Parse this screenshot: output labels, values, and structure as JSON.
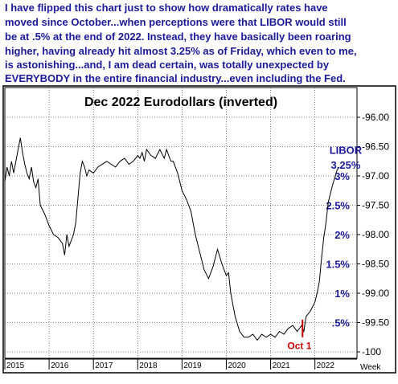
{
  "annotation_text": [
    "I have flipped this chart just to show how dramatically rates have",
    "moved since October...when perceptions were that LIBOR would still",
    "be at .5% at the end of 2022. Instead, they have basically been roaring",
    "higher, having already hit almost 3.25% as of Friday, which even to me,",
    "is astonishing...and, I am dead certain, was totally unexpected by",
    "EVERYBODY in the entire financial industry...even including the Fed."
  ],
  "colors": {
    "annotation_text": "#1a1a9a",
    "price_line": "#000000",
    "oct_marker": "#cc0000",
    "border": "#000000"
  },
  "chart_data": {
    "type": "line",
    "title": "Dec 2022 Eurodollars (inverted)",
    "frequency_label": "Week",
    "y_axis": {
      "inverted": true,
      "ylim": [
        -100,
        -95.9
      ],
      "ticks": [
        "-96.00",
        "-96.50",
        "-97.00",
        "-97.50",
        "-98.00",
        "-98.50",
        "-99.00",
        "-99.50",
        "-100"
      ],
      "tick_values": [
        -96.0,
        -96.5,
        -97.0,
        -97.5,
        -98.0,
        -98.5,
        -99.0,
        -99.5,
        -100.0
      ]
    },
    "rate_labels": [
      {
        "text": "3%",
        "y": -97.0
      },
      {
        "text": "2.5%",
        "y": -97.5
      },
      {
        "text": "2%",
        "y": -98.0
      },
      {
        "text": "1.5%",
        "y": -98.5
      },
      {
        "text": "1%",
        "y": -99.0
      },
      {
        "text": ".5%",
        "y": -99.5
      }
    ],
    "x_axis": {
      "xlim": [
        2015.0,
        2022.95
      ],
      "ticks": [
        "2015",
        "2016",
        "2017",
        "2018",
        "2019",
        "2020",
        "2021",
        "2022"
      ],
      "tick_values": [
        2015,
        2016,
        2017,
        2018,
        2019,
        2020,
        2021,
        2022
      ]
    },
    "annotations": [
      {
        "text": "LIBOR",
        "x": 2022.55,
        "y": -96.62
      },
      {
        "text": "3.25%",
        "x": 2022.55,
        "y": -96.85
      },
      {
        "text": "Oct 1",
        "x": 2021.65,
        "y": -99.9
      }
    ],
    "marker": {
      "label": "Oct 1",
      "x": 2021.72,
      "y_from": -99.45,
      "y_to": -99.75
    },
    "series": [
      {
        "x": [
          2015.0,
          2015.05,
          2015.1,
          2015.15,
          2015.2,
          2015.3,
          2015.35,
          2015.4,
          2015.45,
          2015.5,
          2015.55,
          2015.6,
          2015.65,
          2015.7,
          2015.75,
          2015.8,
          2015.9,
          2016.0,
          2016.1,
          2016.2,
          2016.3,
          2016.35,
          2016.4,
          2016.45,
          2016.5,
          2016.55,
          2016.6,
          2016.7,
          2016.75,
          2016.8,
          2016.85,
          2016.9,
          2017.0,
          2017.1,
          2017.2,
          2017.3,
          2017.4,
          2017.5,
          2017.6,
          2017.7,
          2017.8,
          2017.9,
          2018.0,
          2018.05,
          2018.1,
          2018.15,
          2018.2,
          2018.3,
          2018.4,
          2018.5,
          2018.6,
          2018.65,
          2018.7,
          2018.75,
          2018.8,
          2018.9,
          2019.0,
          2019.1,
          2019.2,
          2019.3,
          2019.4,
          2019.5,
          2019.6,
          2019.7,
          2019.75,
          2019.8,
          2019.9,
          2020.0,
          2020.05,
          2020.1,
          2020.15,
          2020.2,
          2020.3,
          2020.4,
          2020.5,
          2020.6,
          2020.7,
          2020.8,
          2020.9,
          2021.0,
          2021.1,
          2021.2,
          2021.3,
          2021.4,
          2021.5,
          2021.6,
          2021.7,
          2021.75,
          2021.8,
          2021.9,
          2022.0,
          2022.05,
          2022.1,
          2022.15,
          2022.2,
          2022.25,
          2022.3,
          2022.4,
          2022.5,
          2022.55
        ],
        "y": [
          -97.1,
          -96.85,
          -97.0,
          -96.75,
          -96.95,
          -96.55,
          -96.35,
          -96.6,
          -96.8,
          -96.95,
          -97.05,
          -96.85,
          -97.1,
          -97.2,
          -97.05,
          -97.5,
          -97.65,
          -97.85,
          -98.0,
          -98.05,
          -98.15,
          -98.35,
          -98.0,
          -98.2,
          -98.1,
          -98.0,
          -97.8,
          -96.95,
          -96.75,
          -96.85,
          -97.0,
          -96.9,
          -96.95,
          -96.85,
          -96.8,
          -96.75,
          -96.8,
          -96.85,
          -96.75,
          -96.7,
          -96.8,
          -96.75,
          -96.65,
          -96.7,
          -96.6,
          -96.75,
          -96.55,
          -96.65,
          -96.7,
          -96.55,
          -96.7,
          -96.55,
          -96.65,
          -96.75,
          -96.75,
          -96.95,
          -97.25,
          -97.4,
          -97.6,
          -98.0,
          -98.3,
          -98.6,
          -98.75,
          -98.55,
          -98.4,
          -98.25,
          -98.5,
          -98.7,
          -98.65,
          -99.0,
          -99.2,
          -99.4,
          -99.65,
          -99.75,
          -99.75,
          -99.7,
          -99.8,
          -99.7,
          -99.75,
          -99.7,
          -99.75,
          -99.65,
          -99.7,
          -99.6,
          -99.55,
          -99.65,
          -99.55,
          -99.65,
          -99.4,
          -99.3,
          -99.15,
          -99.0,
          -98.8,
          -98.4,
          -98.05,
          -97.8,
          -97.45,
          -97.15,
          -96.9,
          -96.85
        ]
      }
    ]
  }
}
